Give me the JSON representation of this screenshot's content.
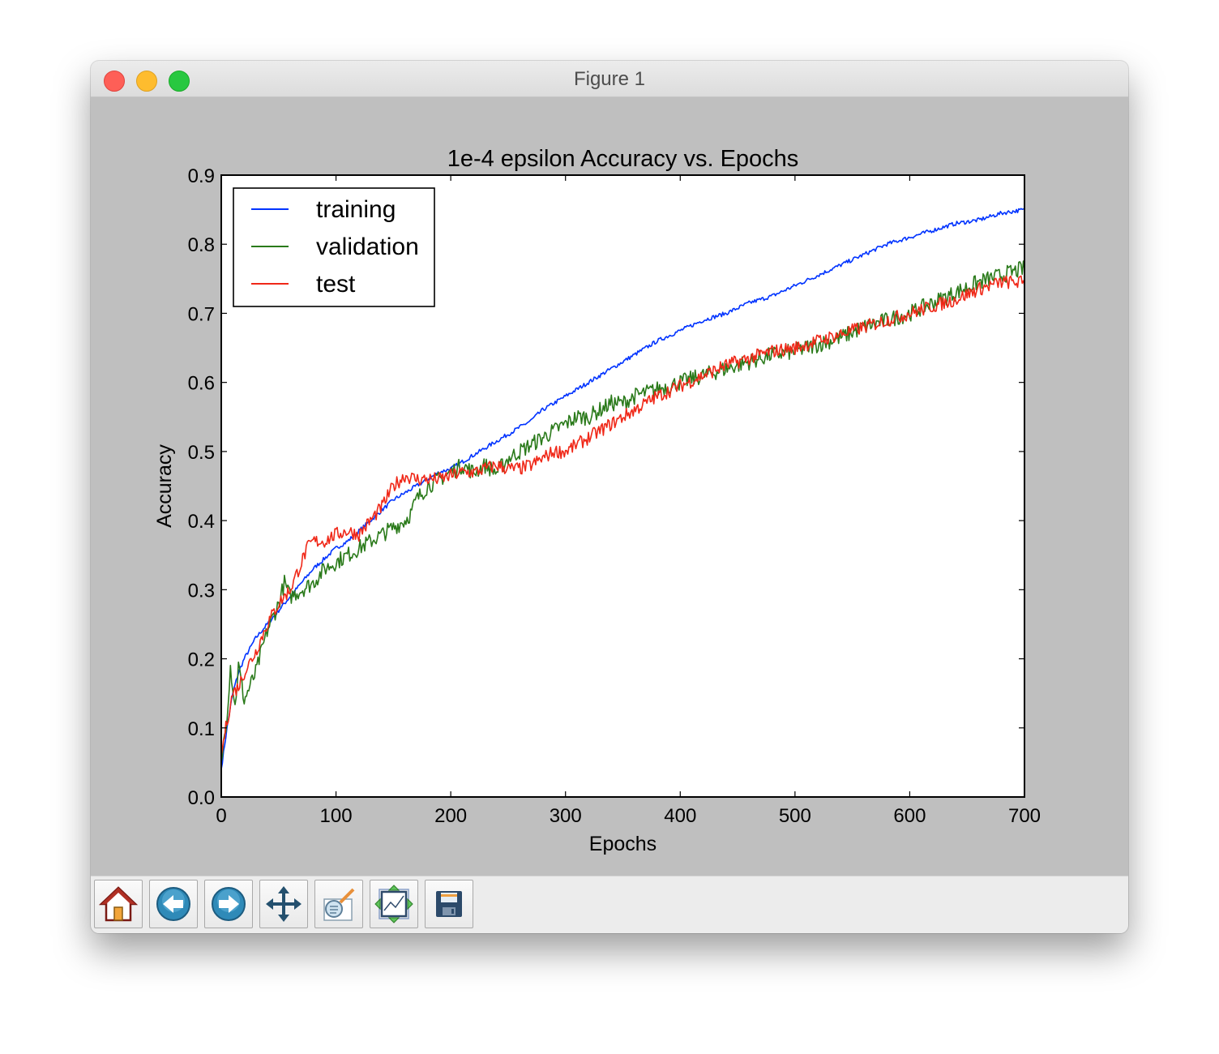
{
  "window": {
    "title": "Figure 1"
  },
  "toolbar": {
    "buttons": [
      {
        "name": "home-button",
        "icon": "home-icon"
      },
      {
        "name": "back-button",
        "icon": "back-arrow-icon"
      },
      {
        "name": "forward-button",
        "icon": "forward-arrow-icon"
      },
      {
        "name": "pan-button",
        "icon": "pan-icon"
      },
      {
        "name": "zoom-button",
        "icon": "zoom-rect-icon"
      },
      {
        "name": "subplots-button",
        "icon": "subplots-icon"
      },
      {
        "name": "save-button",
        "icon": "save-icon"
      }
    ]
  },
  "colors": {
    "training": "#0033ff",
    "validation": "#2a7a1a",
    "test": "#f02818",
    "window_bg": "#bfbfbf"
  },
  "chart_data": {
    "type": "line",
    "title": "1e-4 epsilon Accuracy vs. Epochs",
    "xlabel": "Epochs",
    "ylabel": "Accuracy",
    "xlim": [
      0,
      700
    ],
    "ylim": [
      0.0,
      0.9
    ],
    "xticks": [
      "0",
      "100",
      "200",
      "300",
      "400",
      "500",
      "600",
      "700"
    ],
    "yticks": [
      "0.0",
      "0.1",
      "0.2",
      "0.3",
      "0.4",
      "0.5",
      "0.6",
      "0.7",
      "0.8",
      "0.9"
    ],
    "legend_position": "upper-left",
    "grid": false,
    "series": [
      {
        "name": "training",
        "color": "#0033ff",
        "x": [
          0,
          5,
          10,
          15,
          20,
          30,
          40,
          50,
          60,
          70,
          80,
          90,
          100,
          110,
          120,
          130,
          140,
          150,
          160,
          170,
          180,
          190,
          200,
          210,
          220,
          230,
          240,
          250,
          260,
          270,
          280,
          290,
          300,
          320,
          340,
          360,
          380,
          400,
          420,
          440,
          460,
          480,
          500,
          520,
          540,
          560,
          580,
          600,
          620,
          640,
          660,
          680,
          700
        ],
        "y": [
          0.04,
          0.1,
          0.15,
          0.18,
          0.2,
          0.23,
          0.25,
          0.27,
          0.29,
          0.31,
          0.33,
          0.345,
          0.36,
          0.37,
          0.385,
          0.4,
          0.415,
          0.43,
          0.44,
          0.45,
          0.46,
          0.47,
          0.475,
          0.485,
          0.495,
          0.505,
          0.515,
          0.525,
          0.535,
          0.545,
          0.56,
          0.57,
          0.58,
          0.6,
          0.62,
          0.64,
          0.66,
          0.675,
          0.69,
          0.7,
          0.715,
          0.725,
          0.74,
          0.755,
          0.77,
          0.785,
          0.8,
          0.81,
          0.82,
          0.83,
          0.835,
          0.845,
          0.85
        ]
      },
      {
        "name": "validation",
        "color": "#2a7a1a",
        "x": [
          0,
          5,
          8,
          12,
          15,
          20,
          25,
          30,
          40,
          50,
          55,
          60,
          70,
          80,
          90,
          100,
          110,
          120,
          130,
          140,
          150,
          160,
          165,
          170,
          180,
          190,
          200,
          210,
          220,
          230,
          240,
          250,
          260,
          270,
          280,
          290,
          300,
          310,
          320,
          330,
          340,
          350,
          360,
          380,
          400,
          420,
          440,
          460,
          480,
          500,
          520,
          540,
          560,
          580,
          600,
          620,
          640,
          660,
          680,
          700
        ],
        "y": [
          0.05,
          0.12,
          0.19,
          0.13,
          0.19,
          0.14,
          0.16,
          0.18,
          0.24,
          0.28,
          0.31,
          0.29,
          0.3,
          0.31,
          0.33,
          0.34,
          0.35,
          0.36,
          0.37,
          0.38,
          0.39,
          0.4,
          0.41,
          0.43,
          0.45,
          0.46,
          0.47,
          0.48,
          0.47,
          0.48,
          0.47,
          0.49,
          0.5,
          0.51,
          0.52,
          0.53,
          0.54,
          0.55,
          0.55,
          0.56,
          0.57,
          0.57,
          0.58,
          0.59,
          0.6,
          0.61,
          0.62,
          0.63,
          0.64,
          0.645,
          0.655,
          0.665,
          0.68,
          0.69,
          0.7,
          0.715,
          0.73,
          0.745,
          0.755,
          0.765
        ]
      },
      {
        "name": "test",
        "color": "#f02818",
        "x": [
          0,
          5,
          10,
          15,
          20,
          30,
          40,
          50,
          60,
          70,
          75,
          80,
          90,
          100,
          110,
          120,
          130,
          140,
          150,
          160,
          170,
          180,
          190,
          200,
          210,
          220,
          230,
          240,
          250,
          260,
          270,
          280,
          290,
          300,
          310,
          320,
          340,
          360,
          380,
          400,
          420,
          440,
          460,
          480,
          500,
          520,
          540,
          560,
          580,
          600,
          620,
          640,
          660,
          680,
          700
        ],
        "y": [
          0.06,
          0.11,
          0.15,
          0.16,
          0.18,
          0.21,
          0.25,
          0.28,
          0.3,
          0.34,
          0.36,
          0.37,
          0.37,
          0.38,
          0.385,
          0.38,
          0.4,
          0.42,
          0.45,
          0.465,
          0.46,
          0.46,
          0.46,
          0.465,
          0.47,
          0.47,
          0.475,
          0.48,
          0.475,
          0.475,
          0.48,
          0.49,
          0.5,
          0.5,
          0.51,
          0.52,
          0.54,
          0.56,
          0.58,
          0.595,
          0.61,
          0.625,
          0.635,
          0.645,
          0.65,
          0.66,
          0.67,
          0.68,
          0.69,
          0.7,
          0.71,
          0.72,
          0.735,
          0.745,
          0.745
        ]
      }
    ]
  }
}
